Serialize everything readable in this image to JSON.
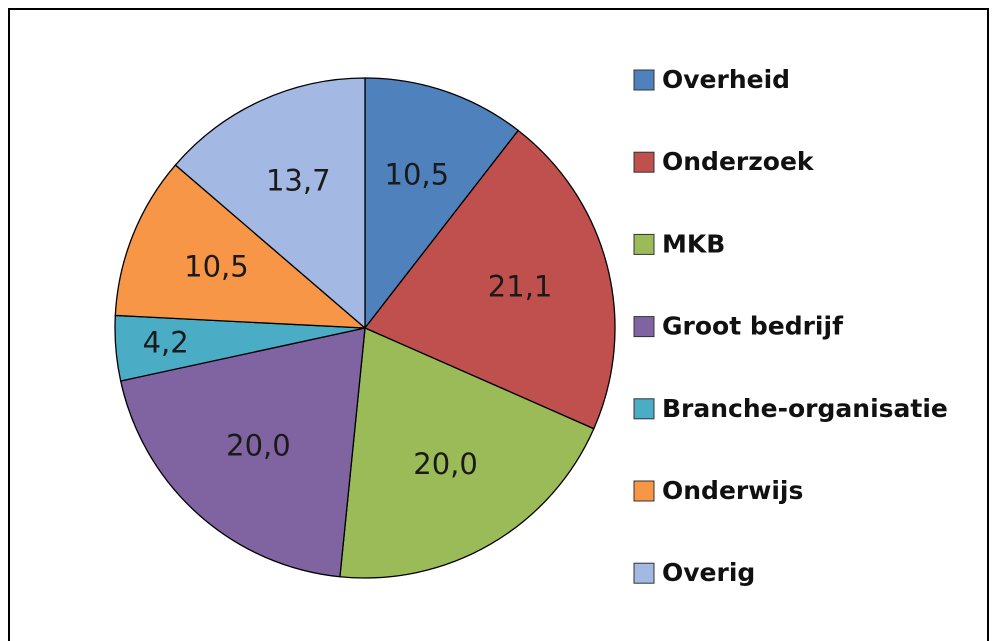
{
  "chart_data": {
    "type": "pie",
    "categories": [
      "Overheid",
      "Onderzoek",
      "MKB",
      "Groot bedrijf",
      "Branche-organisatie",
      "Onderwijs",
      "Overig"
    ],
    "values": [
      10.5,
      21.1,
      20.0,
      20.0,
      4.2,
      10.5,
      13.7
    ],
    "value_labels": [
      "10,5",
      "21,1",
      "20,0",
      "20,0",
      "4,2",
      "10,5",
      "13,7"
    ],
    "colors": [
      "#4f81bd",
      "#c0504d",
      "#9bbb59",
      "#8064a2",
      "#4bacc6",
      "#f79646",
      "#a3b8e2"
    ],
    "legend": "right"
  }
}
